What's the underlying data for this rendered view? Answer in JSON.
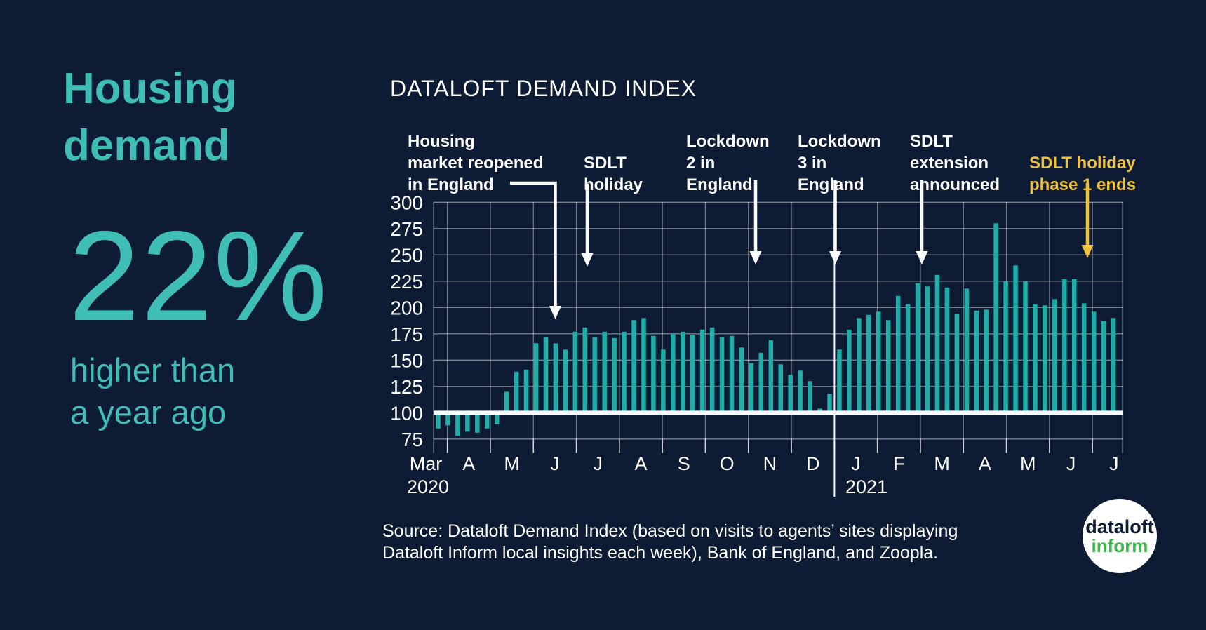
{
  "colors": {
    "background": "#0D1B34",
    "accent_teal": "#3EBEB4",
    "bar_teal": "#1DAEA8",
    "highlight_yellow": "#F0C33C",
    "white": "#FFFFFF",
    "logo_green": "#3DB54B",
    "logo_navy": "#0D1B34"
  },
  "left_panel": {
    "heading": [
      "Housing",
      "demand"
    ],
    "stat_value": "22%",
    "stat_caption": [
      "higher than",
      "a year ago"
    ]
  },
  "chart": {
    "title": "DATALOFT DEMAND INDEX"
  },
  "chart_data": {
    "type": "bar",
    "title": "DATALOFT DEMAND INDEX",
    "x_unit": "weekly",
    "x_range": "Mar 2020 - Jul 2021",
    "baseline": 100,
    "ylim": [
      62,
      300
    ],
    "y_ticks": [
      300,
      275,
      250,
      225,
      200,
      175,
      150,
      125,
      100,
      75
    ],
    "month_labels": [
      "Mar",
      "A",
      "M",
      "J",
      "J",
      "A",
      "S",
      "O",
      "N",
      "D",
      "J",
      "F",
      "M",
      "A",
      "M",
      "J",
      "J"
    ],
    "year_labels": [
      "2020",
      "2021"
    ],
    "weekly_values": [
      85,
      88,
      78,
      82,
      81,
      85,
      89,
      120,
      139,
      141,
      166,
      172,
      166,
      160,
      177,
      181,
      172,
      177,
      171,
      177,
      188,
      190,
      173,
      160,
      175,
      177,
      174,
      179,
      181,
      172,
      173,
      162,
      147,
      157,
      169,
      146,
      136,
      140,
      130,
      104,
      118,
      160,
      179,
      190,
      193,
      196,
      188,
      211,
      203,
      223,
      220,
      231,
      219,
      194,
      218,
      197,
      198,
      280,
      225,
      240,
      225,
      203,
      202,
      208,
      227,
      227,
      204,
      196,
      187,
      190
    ],
    "annotations": [
      {
        "lines": [
          "Housing",
          "market reopened",
          "in England"
        ],
        "color": "#FFFFFF"
      },
      {
        "lines": [
          "SDLT",
          "holiday"
        ],
        "color": "#FFFFFF"
      },
      {
        "lines": [
          "Lockdown",
          "2 in",
          "England"
        ],
        "color": "#FFFFFF"
      },
      {
        "lines": [
          "Lockdown",
          "3 in",
          "England"
        ],
        "color": "#FFFFFF"
      },
      {
        "lines": [
          "SDLT",
          "extension",
          "announced"
        ],
        "color": "#FFFFFF"
      },
      {
        "lines": [
          "SDLT holiday",
          "phase 1 ends"
        ],
        "color": "#F0C33C"
      }
    ],
    "legend": "none",
    "grid": "on"
  },
  "source": {
    "line1": "Source: Dataloft Demand Index (based on visits to agents’ sites displaying",
    "line2": "Dataloft Inform local insights each week), Bank of England, and Zoopla."
  },
  "logo": {
    "line1": "dataloft",
    "line2": "inform"
  }
}
